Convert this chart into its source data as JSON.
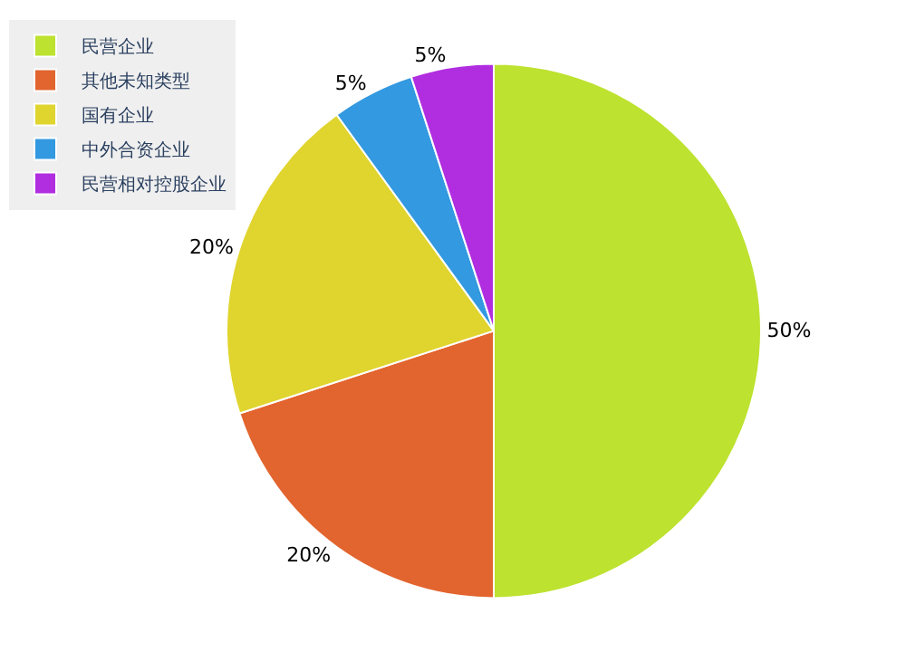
{
  "chart_data": {
    "type": "pie",
    "categories": [
      "民营企业",
      "其他未知类型",
      "国有企业",
      "中外合资企业",
      "民营相对控股企业"
    ],
    "values": [
      50,
      20,
      20,
      5,
      5
    ],
    "value_labels": [
      "50%",
      "20%",
      "20%",
      "5%",
      "5%"
    ],
    "colors": [
      "#bde22f",
      "#e2642e",
      "#e0d42e",
      "#3399e0",
      "#b02ee0"
    ],
    "legend": "top left"
  }
}
